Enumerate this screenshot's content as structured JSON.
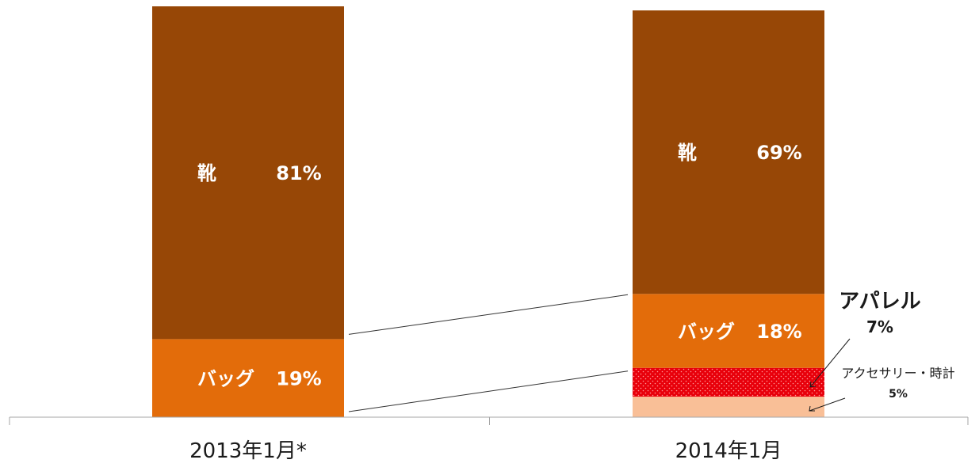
{
  "chart_data": {
    "type": "bar",
    "stacked": true,
    "percent_stacked": true,
    "categories": [
      "2013年1月*",
      "2014年1月"
    ],
    "series": [
      {
        "name": "アクセサリー・時計",
        "values": [
          0,
          5
        ],
        "label": "",
        "color": "#f9bf97"
      },
      {
        "name": "アパレル",
        "values": [
          0,
          7
        ],
        "label": "",
        "color": "#e8000b",
        "pattern": "dotted"
      },
      {
        "name": "バッグ",
        "values": [
          19,
          18
        ],
        "label": "バッグ",
        "color": "#e36c0a"
      },
      {
        "name": "靴",
        "values": [
          81,
          69
        ],
        "label": "靴",
        "color": "#974706"
      }
    ],
    "value_suffix": "%",
    "ylim": [
      0,
      100
    ],
    "grid": false,
    "legend": "none",
    "callouts": [
      {
        "series": "アパレル",
        "category": "2014年1月",
        "text": "アパレル",
        "value_text": "7%"
      },
      {
        "series": "アクセサリー・時計",
        "category": "2014年1月",
        "text": "アクセサリー・時計",
        "value_text": "5%"
      }
    ],
    "series_lines": true,
    "axis_color": "#a6a6a6"
  }
}
